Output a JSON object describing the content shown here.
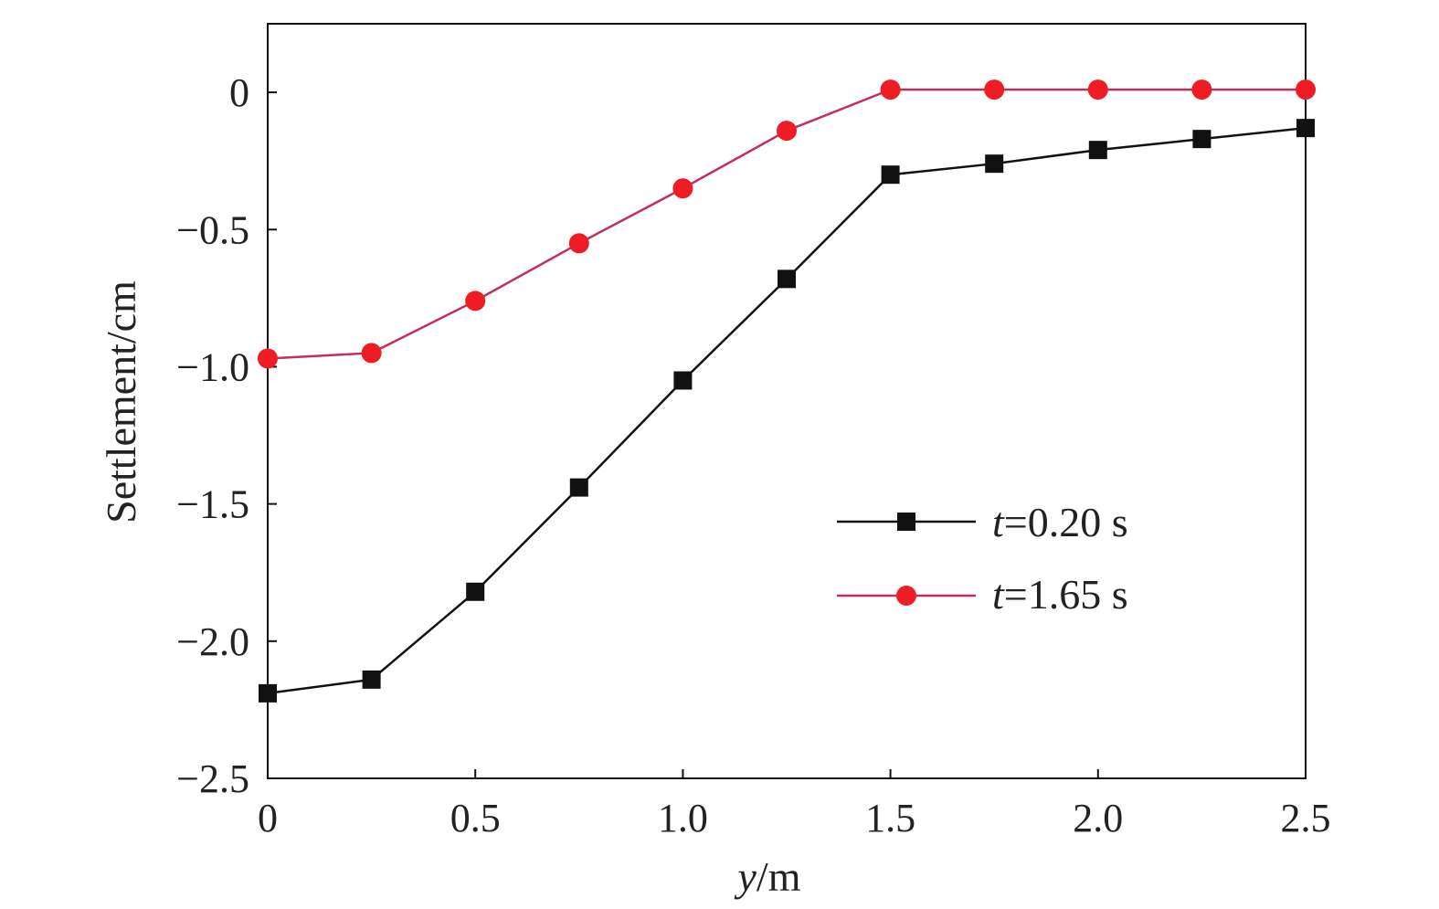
{
  "chart_data": {
    "type": "line",
    "title": "",
    "xlabel": {
      "var": "y",
      "unit": "/m"
    },
    "ylabel": "Settlement/cm",
    "xlim": [
      0,
      2.5
    ],
    "ylim": [
      -2.5,
      0.25
    ],
    "x_ticks": [
      0,
      0.5,
      1.0,
      1.5,
      2.0,
      2.5
    ],
    "x_tick_labels": [
      "0",
      "0.5",
      "1.0",
      "1.5",
      "2.0",
      "2.5"
    ],
    "y_ticks": [
      0,
      -0.5,
      -1.0,
      -1.5,
      -2.0,
      -2.5
    ],
    "y_tick_labels": [
      "0",
      "−0.5",
      "−1.0",
      "−1.5",
      "−2.0",
      "−2.5"
    ],
    "grid": false,
    "legend_position": "lower-right",
    "x": [
      0,
      0.25,
      0.5,
      0.75,
      1.0,
      1.25,
      1.5,
      1.75,
      2.0,
      2.25,
      2.5
    ],
    "series": [
      {
        "name": {
          "var": "t",
          "rest": "=0.20 s"
        },
        "marker": "square",
        "color": "#111111",
        "line_color": "#111111",
        "values": [
          -2.19,
          -2.14,
          -1.82,
          -1.44,
          -1.05,
          -0.68,
          -0.3,
          -0.26,
          -0.21,
          -0.17,
          -0.13
        ]
      },
      {
        "name": {
          "var": "t",
          "rest": "=1.65 s"
        },
        "marker": "circle",
        "color": "#ee1c24",
        "line_color": "#c0305a",
        "values": [
          -0.97,
          -0.95,
          -0.76,
          -0.55,
          -0.35,
          -0.14,
          0.01,
          0.01,
          0.01,
          0.01,
          0.01
        ]
      }
    ]
  }
}
